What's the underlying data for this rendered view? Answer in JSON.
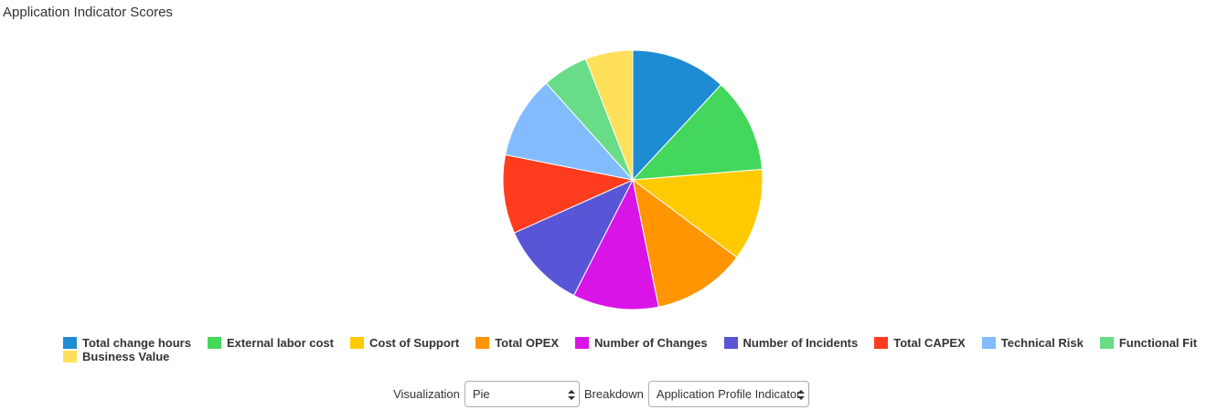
{
  "chart_data": {
    "type": "pie",
    "title": "Application Indicator Scores",
    "categories": [
      "Total change hours",
      "External labor cost",
      "Cost of Support",
      "Total OPEX",
      "Number of Changes",
      "Number of Incidents",
      "Total CAPEX",
      "Technical Risk",
      "Functional Fit",
      "Business Value"
    ],
    "values": [
      11.9,
      11.8,
      11.5,
      11.6,
      10.7,
      10.8,
      9.8,
      10.3,
      5.7,
      5.9
    ],
    "colors": [
      "#1e8cd3",
      "#43d85c",
      "#ffcb00",
      "#ff9500",
      "#d814e6",
      "#5856d6",
      "#ff3c1e",
      "#82bcfc",
      "#69dc88",
      "#ffe05a"
    ]
  },
  "controls": {
    "visualization_label": "Visualization",
    "visualization_value": "Pie",
    "breakdown_label": "Breakdown",
    "breakdown_value": "Application Profile Indicator"
  }
}
